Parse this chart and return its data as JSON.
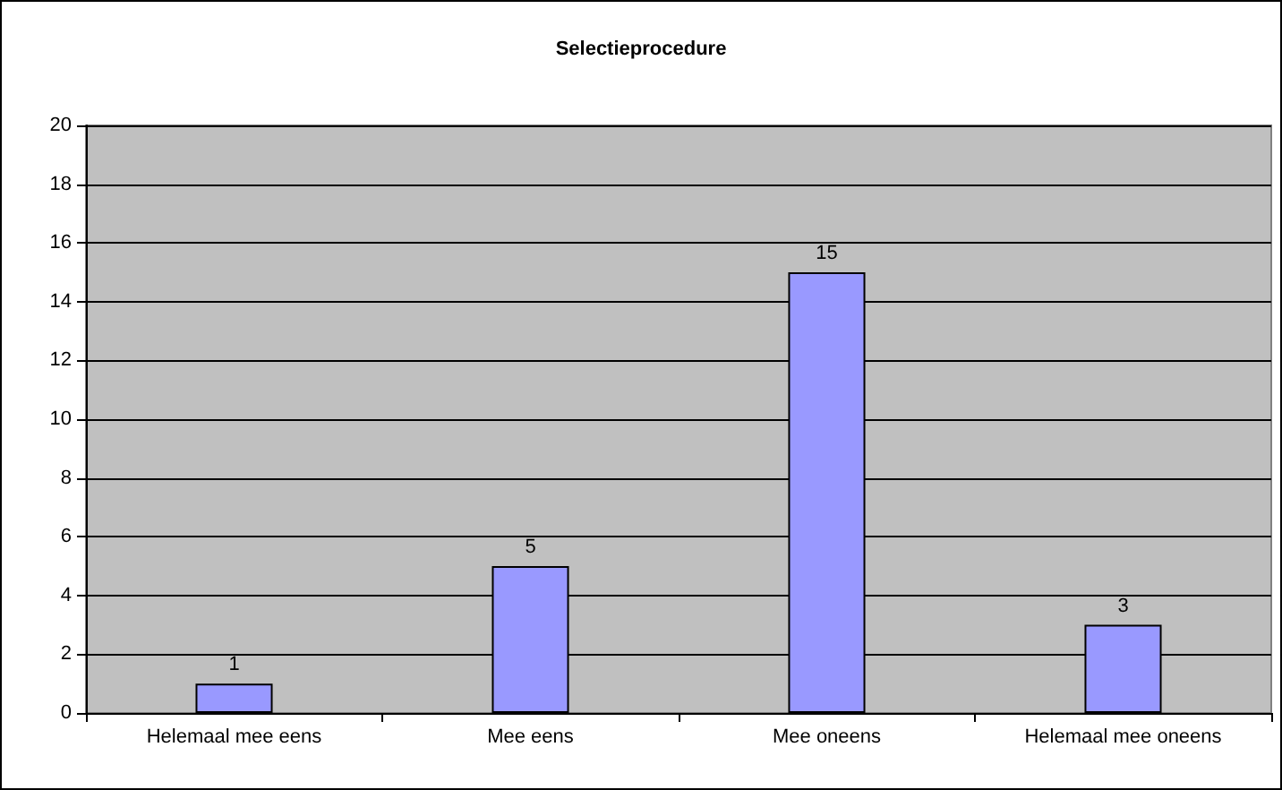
{
  "chart_data": {
    "type": "bar",
    "title": "Selectieprocedure",
    "categories": [
      "Helemaal mee eens",
      "Mee eens",
      "Mee oneens",
      "Helemaal mee oneens"
    ],
    "values": [
      1,
      5,
      15,
      3
    ],
    "color": "#9999ff",
    "ylim": [
      0,
      20
    ],
    "yticks": [
      0,
      2,
      4,
      6,
      8,
      10,
      12,
      14,
      16,
      18,
      20
    ],
    "grid": "y",
    "data_labels": true
  }
}
